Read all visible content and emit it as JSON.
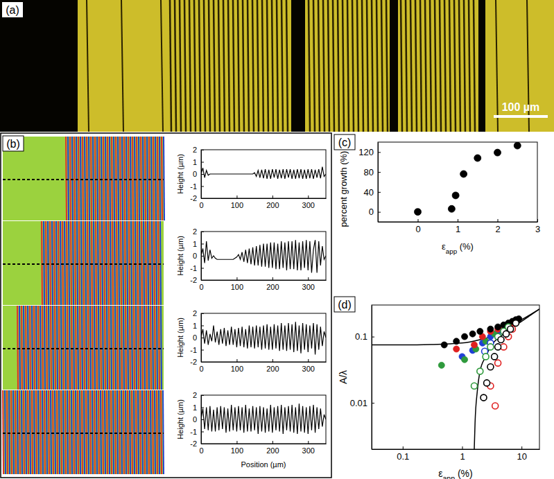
{
  "panel_labels": [
    "(a)",
    "(b)",
    "(c)",
    "(d)"
  ],
  "scale_bar": "100 µm",
  "chart_data": [
    {
      "type": "line",
      "color": "#000000",
      "ylabel": "Height (µm)",
      "xlim": [
        0,
        350
      ],
      "ylim": [
        -2,
        2
      ],
      "xticks": [
        0,
        100,
        200,
        300
      ],
      "yticks": [
        -2,
        -1,
        0,
        1,
        2
      ],
      "x": [
        0,
        5,
        10,
        15,
        20,
        25,
        30,
        35,
        40,
        45,
        50,
        55,
        60,
        65,
        70,
        75,
        80,
        85,
        90,
        95,
        100,
        105,
        110,
        115,
        120,
        125,
        130,
        135,
        140,
        145,
        150,
        155,
        160,
        165,
        170,
        175,
        180,
        185,
        190,
        195,
        200,
        205,
        210,
        215,
        220,
        225,
        230,
        235,
        240,
        245,
        250,
        255,
        260,
        265,
        270,
        275,
        280,
        285,
        290,
        295,
        300,
        305,
        310,
        315,
        320,
        325,
        330,
        335,
        340,
        345,
        350
      ],
      "values": [
        0,
        0.5,
        -0.3,
        0.3,
        -0.1,
        0,
        0,
        0,
        0,
        0,
        0,
        0,
        0,
        0,
        0,
        0,
        0,
        0,
        0,
        0,
        0,
        0,
        0,
        0,
        0,
        0,
        0,
        0,
        0,
        0,
        0.1,
        -0.2,
        0.3,
        -0.3,
        0.35,
        -0.35,
        0.4,
        -0.4,
        0.35,
        -0.4,
        0.4,
        -0.3,
        0.4,
        -0.4,
        0.35,
        -0.35,
        0.4,
        -0.4,
        0.4,
        -0.3,
        0.4,
        -0.4,
        0.35,
        -0.4,
        0.4,
        -0.35,
        0.4,
        -0.4,
        0.35,
        -0.4,
        0.4,
        -0.35,
        0.4,
        -0.4,
        0.35,
        -0.3,
        0.4,
        -0.35,
        0.6,
        -0.2,
        0
      ]
    },
    {
      "type": "line",
      "color": "#000000",
      "ylabel": "Height (µm)",
      "xlim": [
        0,
        350
      ],
      "ylim": [
        -2,
        2
      ],
      "xticks": [
        0,
        100,
        200,
        300
      ],
      "yticks": [
        -2,
        -1,
        0,
        1,
        2
      ],
      "x": [
        0,
        5,
        10,
        15,
        20,
        25,
        30,
        35,
        40,
        45,
        50,
        55,
        60,
        65,
        70,
        75,
        80,
        85,
        90,
        95,
        100,
        105,
        110,
        115,
        120,
        125,
        130,
        135,
        140,
        145,
        150,
        155,
        160,
        165,
        170,
        175,
        180,
        185,
        190,
        195,
        200,
        205,
        210,
        215,
        220,
        225,
        230,
        235,
        240,
        245,
        250,
        255,
        260,
        265,
        270,
        275,
        280,
        285,
        290,
        295,
        300,
        305,
        310,
        315,
        320,
        325,
        330,
        335,
        340,
        345,
        350
      ],
      "values": [
        0,
        0.6,
        -0.6,
        1.2,
        -0.4,
        0.5,
        -0.2,
        0,
        -0.2,
        -0.3,
        -0.3,
        -0.3,
        -0.3,
        -0.3,
        -0.3,
        -0.3,
        -0.3,
        -0.3,
        -0.3,
        -0.2,
        -0.1,
        0.1,
        -0.3,
        0.3,
        -0.5,
        0.5,
        -0.6,
        0.6,
        -0.7,
        0.7,
        -0.8,
        0.8,
        -0.8,
        0.9,
        -0.9,
        1.0,
        -0.9,
        1.0,
        -1.0,
        1.1,
        -1.0,
        1.1,
        -1.1,
        1.0,
        -1.1,
        1.2,
        -1.0,
        1.1,
        -1.2,
        1.2,
        -1.1,
        1.2,
        -1.1,
        1.3,
        -1.2,
        1.1,
        -1.2,
        1.2,
        -1.0,
        1.3,
        -1.2,
        1.2,
        -1.4,
        0.5,
        1.3,
        -1.4,
        1.2,
        -0.8,
        0.8,
        -0.3,
        0
      ]
    },
    {
      "type": "line",
      "color": "#000000",
      "ylabel": "Height (µm)",
      "xlim": [
        0,
        350
      ],
      "ylim": [
        -2,
        2
      ],
      "xticks": [
        0,
        100,
        200,
        300
      ],
      "yticks": [
        -2,
        -1,
        0,
        1,
        2
      ],
      "x": [
        0,
        5,
        10,
        15,
        20,
        25,
        30,
        35,
        40,
        45,
        50,
        55,
        60,
        65,
        70,
        75,
        80,
        85,
        90,
        95,
        100,
        105,
        110,
        115,
        120,
        125,
        130,
        135,
        140,
        145,
        150,
        155,
        160,
        165,
        170,
        175,
        180,
        185,
        190,
        195,
        200,
        205,
        210,
        215,
        220,
        225,
        230,
        235,
        240,
        245,
        250,
        255,
        260,
        265,
        270,
        275,
        280,
        285,
        290,
        295,
        300,
        305,
        310,
        315,
        320,
        325,
        330,
        335,
        340,
        345,
        350
      ],
      "values": [
        0,
        0.7,
        -0.5,
        0.6,
        -0.6,
        0.3,
        -0.3,
        1.0,
        -0.4,
        0.5,
        -0.6,
        0.7,
        -0.5,
        0.8,
        -0.7,
        0.6,
        -0.6,
        0.9,
        -0.6,
        0.7,
        -0.8,
        0.8,
        -0.7,
        0.9,
        -0.8,
        0.7,
        -0.9,
        1.0,
        -0.8,
        0.9,
        -0.9,
        1.0,
        -0.8,
        0.9,
        -1.0,
        1.0,
        -0.9,
        1.1,
        -1.0,
        0.9,
        -1.0,
        1.1,
        -0.9,
        1.0,
        -1.1,
        1.2,
        -1.0,
        1.0,
        -1.1,
        1.2,
        -1.0,
        1.1,
        -1.2,
        1.3,
        -1.1,
        1.0,
        -1.3,
        1.2,
        -1.0,
        1.1,
        -1.2,
        1.0,
        -0.9,
        1.2,
        -1.4,
        1.1,
        -1.0,
        0.9,
        -0.7,
        0.5,
        0
      ]
    },
    {
      "type": "line",
      "color": "#000000",
      "ylabel": "Height (µm)",
      "xlabel": "Position (µm)",
      "xlim": [
        0,
        350
      ],
      "ylim": [
        -2,
        2
      ],
      "xticks": [
        0,
        100,
        200,
        300
      ],
      "yticks": [
        -2,
        -1,
        0,
        1,
        2
      ],
      "x": [
        0,
        5,
        10,
        15,
        20,
        25,
        30,
        35,
        40,
        45,
        50,
        55,
        60,
        65,
        70,
        75,
        80,
        85,
        90,
        95,
        100,
        105,
        110,
        115,
        120,
        125,
        130,
        135,
        140,
        145,
        150,
        155,
        160,
        165,
        170,
        175,
        180,
        185,
        190,
        195,
        200,
        205,
        210,
        215,
        220,
        225,
        230,
        235,
        240,
        245,
        250,
        255,
        260,
        265,
        270,
        275,
        280,
        285,
        290,
        295,
        300,
        305,
        310,
        315,
        320,
        325,
        330,
        335,
        340,
        345,
        350
      ],
      "values": [
        0,
        0.9,
        -0.8,
        1.0,
        -0.9,
        1.1,
        -1.0,
        0.8,
        -1.0,
        1.0,
        -0.9,
        1.1,
        -0.8,
        1.0,
        -1.1,
        0.9,
        -1.0,
        1.2,
        -0.9,
        1.0,
        -1.0,
        1.1,
        -0.9,
        1.0,
        -1.1,
        1.2,
        -1.0,
        0.9,
        -1.0,
        1.1,
        -0.9,
        1.0,
        -1.2,
        1.1,
        -1.0,
        1.0,
        -1.1,
        0.9,
        -1.0,
        1.2,
        -1.1,
        1.0,
        -0.9,
        1.1,
        -1.0,
        1.2,
        -1.2,
        1.0,
        -0.9,
        1.1,
        -1.0,
        1.2,
        -1.1,
        1.0,
        -1.2,
        1.3,
        -1.0,
        1.1,
        -1.1,
        1.0,
        -1.2,
        1.1,
        -0.9,
        1.2,
        -1.1,
        1.0,
        -0.8,
        0.9,
        -0.6,
        0.4,
        0
      ]
    },
    {
      "type": "scatter",
      "color": "#000000",
      "marker": "circle",
      "xlabel": "εapp (%)",
      "ylabel": "percent growth (%)",
      "xlim": [
        -1,
        3
      ],
      "ylim": [
        -20,
        140
      ],
      "xticks": [
        0,
        1,
        2,
        3
      ],
      "yticks": [
        0,
        40,
        80,
        120
      ],
      "x": [
        0,
        0.85,
        0.95,
        1.15,
        1.5,
        2,
        2.5
      ],
      "values": [
        0,
        6,
        33,
        76,
        108,
        119,
        133
      ]
    },
    {
      "type": "scatter",
      "log": true,
      "xlabel": "εapp (%)",
      "ylabel": "A/λ",
      "xlim": [
        0.03,
        20
      ],
      "ylim": [
        0.002,
        0.3
      ],
      "xticks": [
        0.1,
        1,
        10
      ],
      "yticks": [
        0.01,
        0.1
      ],
      "series": [
        {
          "type": "line",
          "color": "#000000",
          "x": [
            0.03,
            0.1,
            0.3,
            1,
            2,
            3,
            5,
            10,
            20
          ],
          "values": [
            0.075,
            0.075,
            0.076,
            0.08,
            0.09,
            0.1,
            0.13,
            0.18,
            0.26
          ]
        },
        {
          "type": "line",
          "color": "#000000",
          "x": [
            1.6,
            1.65,
            1.8,
            2,
            2.5,
            3,
            5,
            10,
            20
          ],
          "values": [
            0.002,
            0.005,
            0.015,
            0.03,
            0.05,
            0.07,
            0.11,
            0.17,
            0.26
          ]
        },
        {
          "color": "#1f3fd6",
          "marker": "circle",
          "x": [
            1.0,
            1.5,
            2.2,
            3,
            4,
            5.5,
            7
          ],
          "values": [
            0.05,
            0.062,
            0.08,
            0.1,
            0.12,
            0.14,
            0.16
          ]
        },
        {
          "color": "#2f9a3c",
          "marker": "circle",
          "x": [
            0.45,
            1.1,
            1.7,
            2.5,
            3.5,
            5,
            6.5,
            8
          ],
          "values": [
            0.037,
            0.045,
            0.065,
            0.085,
            0.11,
            0.13,
            0.15,
            0.17
          ]
        },
        {
          "color": "#e02020",
          "marker": "circle",
          "x": [
            0.8,
            1.6,
            2.2,
            3,
            4,
            5,
            6,
            7,
            8
          ],
          "values": [
            0.065,
            0.075,
            0.1,
            0.12,
            0.13,
            0.14,
            0.15,
            0.16,
            0.17
          ]
        },
        {
          "color": "#000000",
          "marker": "circle",
          "x": [
            0.5,
            0.8,
            1.1,
            1.5,
            2,
            3,
            4,
            5,
            6,
            7,
            8,
            9
          ],
          "values": [
            0.075,
            0.085,
            0.1,
            0.11,
            0.12,
            0.13,
            0.14,
            0.15,
            0.16,
            0.17,
            0.18,
            0.185
          ]
        },
        {
          "color": "#1f3fd6",
          "marker": "open-circle",
          "x": [
            2.4,
            3,
            4,
            5
          ],
          "values": [
            0.06,
            0.08,
            0.1,
            0.12
          ]
        },
        {
          "color": "#2f9a3c",
          "marker": "open-circle",
          "x": [
            1.6,
            2,
            2.5,
            3,
            4,
            5,
            6
          ],
          "values": [
            0.018,
            0.03,
            0.05,
            0.07,
            0.1,
            0.12,
            0.14
          ]
        },
        {
          "color": "#e02020",
          "marker": "open-circle",
          "x": [
            3,
            3.6,
            4,
            5,
            6,
            7
          ],
          "values": [
            0.018,
            0.009,
            0.04,
            0.07,
            0.1,
            0.13
          ]
        },
        {
          "color": "#000000",
          "marker": "open-circle",
          "x": [
            2.3,
            2.6,
            3,
            3.5,
            4,
            4.5,
            5.5,
            6.5,
            8
          ],
          "values": [
            0.012,
            0.02,
            0.035,
            0.05,
            0.07,
            0.09,
            0.11,
            0.13,
            0.16
          ]
        }
      ]
    }
  ]
}
